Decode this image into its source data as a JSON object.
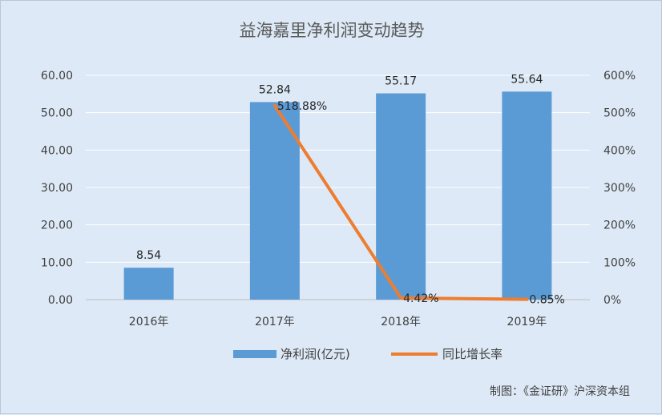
{
  "chart_data": {
    "type": "bar",
    "title": "益海嘉里净利润变动趋势",
    "categories": [
      "2016年",
      "2017年",
      "2018年",
      "2019年"
    ],
    "series": [
      {
        "name": "净利润(亿元)",
        "type": "bar",
        "axis": "left",
        "color": "#5b9bd5",
        "values": [
          8.54,
          52.84,
          55.17,
          55.64
        ],
        "labels": [
          "8.54",
          "52.84",
          "55.17",
          "55.64"
        ]
      },
      {
        "name": "同比增长率",
        "type": "line",
        "axis": "right",
        "color": "#ed7d31",
        "points": [
          {
            "category": "2017年",
            "value": 518.88,
            "label": "518.88%"
          },
          {
            "category": "2018年",
            "value": 4.42,
            "label": "4.42%"
          },
          {
            "category": "2019年",
            "value": 0.85,
            "label": "0.85%"
          }
        ]
      }
    ],
    "y_left": {
      "range": [
        0,
        60
      ],
      "ticks": [
        0,
        10,
        20,
        30,
        40,
        50,
        60
      ],
      "tick_labels": [
        "0.00",
        "10.00",
        "20.00",
        "30.00",
        "40.00",
        "50.00",
        "60.00"
      ]
    },
    "y_right": {
      "range": [
        0,
        600
      ],
      "ticks": [
        0,
        100,
        200,
        300,
        400,
        500,
        600
      ],
      "tick_labels": [
        "0%",
        "100%",
        "200%",
        "300%",
        "400%",
        "500%",
        "600%"
      ]
    },
    "grid": true,
    "legend": "bottom-center",
    "credit": "制图：《金证研》沪深资本组"
  }
}
